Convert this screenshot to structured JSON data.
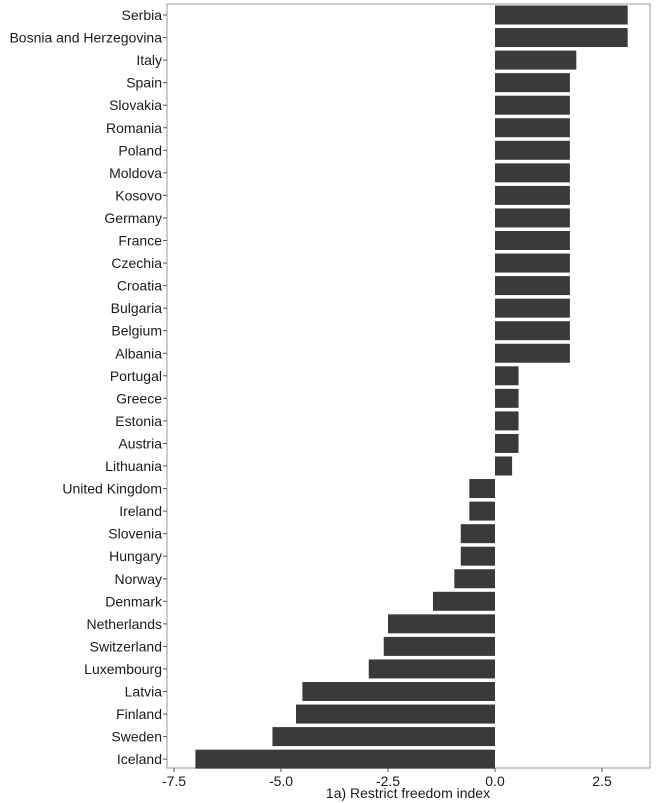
{
  "chart_data": {
    "type": "bar",
    "orientation": "horizontal",
    "xlabel": "1a) Restrict freedom index",
    "ylabel": "",
    "xlim": [
      -7.5,
      3.6
    ],
    "xticks": [
      -7.5,
      -5.0,
      -2.5,
      0.0,
      2.5
    ],
    "xtick_labels": [
      "-7.5",
      "-5.0",
      "-2.5",
      "0.0",
      "2.5"
    ],
    "grid": false,
    "bar_color": "#3a3a3a",
    "categories": [
      "Serbia",
      "Bosnia and Herzegovina",
      "Italy",
      "Spain",
      "Slovakia",
      "Romania",
      "Poland",
      "Moldova",
      "Kosovo",
      "Germany",
      "France",
      "Czechia",
      "Croatia",
      "Bulgaria",
      "Belgium",
      "Albania",
      "Portugal",
      "Greece",
      "Estonia",
      "Austria",
      "Lithuania",
      "United Kingdom",
      "Ireland",
      "Slovenia",
      "Hungary",
      "Norway",
      "Denmark",
      "Netherlands",
      "Switzerland",
      "Luxembourg",
      "Latvia",
      "Finland",
      "Sweden",
      "Iceland"
    ],
    "values": [
      3.1,
      3.1,
      1.9,
      1.75,
      1.75,
      1.75,
      1.75,
      1.75,
      1.75,
      1.75,
      1.75,
      1.75,
      1.75,
      1.75,
      1.75,
      1.75,
      0.55,
      0.55,
      0.55,
      0.55,
      0.4,
      -0.6,
      -0.6,
      -0.8,
      -0.8,
      -0.95,
      -1.45,
      -2.5,
      -2.6,
      -2.95,
      -4.5,
      -4.65,
      -5.2,
      -7.0
    ]
  }
}
